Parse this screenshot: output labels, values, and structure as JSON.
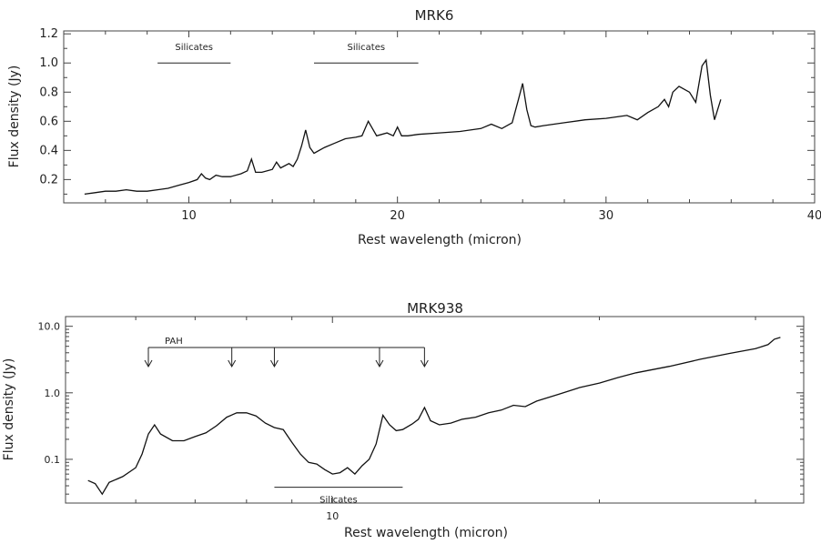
{
  "chart_data": [
    {
      "type": "line",
      "title": "MRK6",
      "xlabel": "Rest wavelength (micron)",
      "ylabel": "Flux density (Jy)",
      "xlim": [
        4,
        40
      ],
      "ylim": [
        0.04,
        1.22
      ],
      "x_scale": "linear",
      "y_scale": "linear",
      "xticks": [
        10,
        20,
        30,
        40
      ],
      "yticks": [
        0.2,
        0.4,
        0.6,
        0.8,
        1.0,
        1.2
      ],
      "xtick_labels": [
        "10",
        "20",
        "30",
        "40"
      ],
      "ytick_labels": [
        "0.2",
        "0.4",
        "0.6",
        "0.8",
        "1.0",
        "1.2"
      ],
      "grid": false,
      "annotations": [
        {
          "label": "Silicates",
          "x_range": [
            8.5,
            12.0
          ],
          "y": 1.0
        },
        {
          "label": "Silicates",
          "x_range": [
            16.0,
            21.0
          ],
          "y": 1.0
        }
      ],
      "series": [
        {
          "x": [
            5.0,
            5.5,
            6.0,
            6.5,
            7.0,
            7.5,
            8.0,
            8.5,
            9.0,
            9.5,
            10.0,
            10.4,
            10.6,
            10.8,
            11.0,
            11.3,
            11.6,
            12.0,
            12.5,
            12.8,
            13.0,
            13.2,
            13.5,
            14.0,
            14.2,
            14.4,
            14.8,
            15.0,
            15.2,
            15.4,
            15.6,
            15.8,
            16.0,
            16.5,
            17.0,
            17.5,
            18.0,
            18.3,
            18.6,
            18.8,
            19.0,
            19.5,
            19.8,
            20.0,
            20.2,
            20.5,
            21.0,
            22.0,
            23.0,
            24.0,
            24.5,
            25.0,
            25.5,
            25.8,
            26.0,
            26.2,
            26.4,
            26.6,
            27.0,
            28.0,
            29.0,
            30.0,
            31.0,
            31.5,
            32.0,
            32.5,
            32.8,
            33.0,
            33.2,
            33.5,
            34.0,
            34.3,
            34.6,
            34.8,
            35.0,
            35.2,
            35.5
          ],
          "y": [
            0.1,
            0.11,
            0.12,
            0.12,
            0.13,
            0.12,
            0.12,
            0.13,
            0.14,
            0.16,
            0.18,
            0.2,
            0.24,
            0.21,
            0.2,
            0.23,
            0.22,
            0.22,
            0.24,
            0.26,
            0.34,
            0.25,
            0.25,
            0.27,
            0.32,
            0.28,
            0.31,
            0.29,
            0.34,
            0.43,
            0.54,
            0.42,
            0.38,
            0.42,
            0.45,
            0.48,
            0.49,
            0.5,
            0.6,
            0.55,
            0.5,
            0.52,
            0.5,
            0.56,
            0.5,
            0.5,
            0.51,
            0.52,
            0.53,
            0.55,
            0.58,
            0.55,
            0.59,
            0.75,
            0.86,
            0.68,
            0.57,
            0.56,
            0.57,
            0.59,
            0.61,
            0.62,
            0.64,
            0.61,
            0.66,
            0.7,
            0.75,
            0.7,
            0.8,
            0.84,
            0.8,
            0.73,
            0.98,
            1.02,
            0.78,
            0.61,
            0.75
          ]
        }
      ]
    },
    {
      "type": "line",
      "title": "MRK938",
      "xlabel": "Rest wavelength (micron)",
      "ylabel": "Flux density (Jy)",
      "xlim": [
        5.0,
        34.0
      ],
      "ylim": [
        0.022,
        14.0
      ],
      "x_scale": "log",
      "y_scale": "log",
      "xticks": [
        10
      ],
      "yticks": [
        0.1,
        1.0,
        10.0
      ],
      "xtick_labels": [
        "10"
      ],
      "ytick_labels": [
        "0.1",
        "1.0",
        "10.0"
      ],
      "grid": false,
      "annotations": [
        {
          "label": "PAH",
          "x": [
            6.2,
            7.7,
            8.6,
            11.3,
            12.7
          ],
          "y": 4.8
        },
        {
          "label": "Silicates",
          "x_range": [
            8.6,
            12.0
          ],
          "y": 0.038
        }
      ],
      "series": [
        {
          "x": [
            5.3,
            5.4,
            5.5,
            5.6,
            5.8,
            6.0,
            6.1,
            6.2,
            6.3,
            6.4,
            6.6,
            6.8,
            7.0,
            7.2,
            7.4,
            7.6,
            7.8,
            8.0,
            8.2,
            8.4,
            8.6,
            8.8,
            9.0,
            9.2,
            9.4,
            9.6,
            9.8,
            10.0,
            10.2,
            10.4,
            10.6,
            10.8,
            11.0,
            11.2,
            11.4,
            11.6,
            11.8,
            12.0,
            12.3,
            12.5,
            12.7,
            12.9,
            13.2,
            13.6,
            14.0,
            14.5,
            15.0,
            15.5,
            16.0,
            16.5,
            17.0,
            18.0,
            19.0,
            20.0,
            21.0,
            22.0,
            24.0,
            26.0,
            28.0,
            30.0,
            31.0,
            31.5,
            32.0
          ],
          "y": [
            0.048,
            0.043,
            0.03,
            0.045,
            0.055,
            0.075,
            0.12,
            0.24,
            0.33,
            0.24,
            0.19,
            0.19,
            0.22,
            0.25,
            0.32,
            0.43,
            0.5,
            0.5,
            0.45,
            0.35,
            0.3,
            0.28,
            0.18,
            0.12,
            0.09,
            0.085,
            0.07,
            0.06,
            0.063,
            0.075,
            0.06,
            0.08,
            0.1,
            0.17,
            0.46,
            0.33,
            0.27,
            0.28,
            0.34,
            0.4,
            0.6,
            0.38,
            0.33,
            0.35,
            0.4,
            0.43,
            0.5,
            0.55,
            0.65,
            0.62,
            0.75,
            0.95,
            1.2,
            1.4,
            1.7,
            2.0,
            2.5,
            3.2,
            3.9,
            4.6,
            5.3,
            6.4,
            6.8
          ]
        }
      ]
    }
  ]
}
